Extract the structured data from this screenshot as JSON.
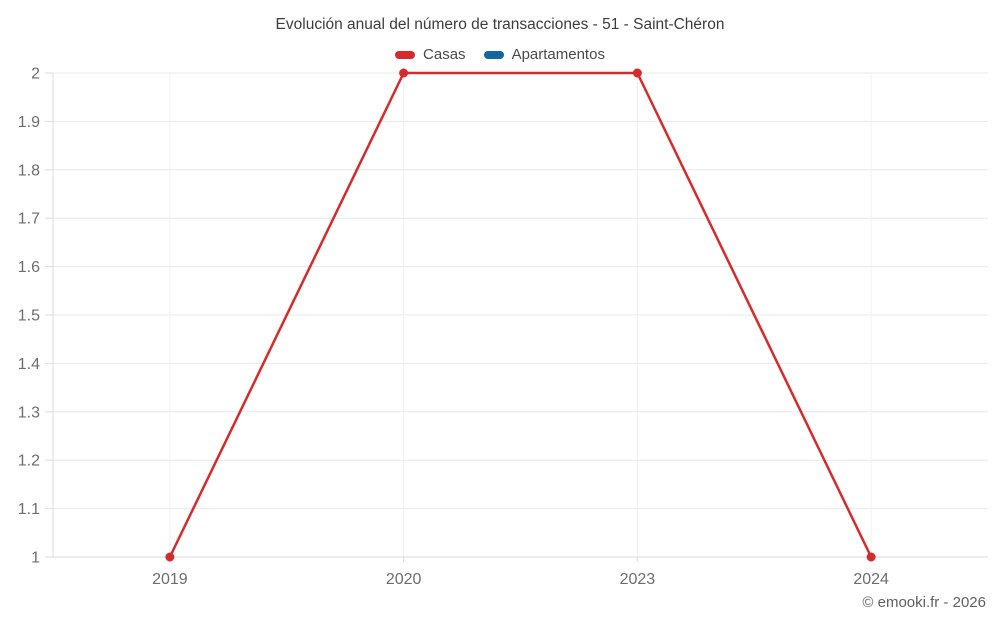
{
  "title": "Evolución anual del número de transacciones - 51 - Saint-Chéron",
  "watermark": "© emooki.fr - 2026",
  "legend": {
    "items": [
      {
        "label": "Casas",
        "color": "#d62b2c"
      },
      {
        "label": "Apartamentos",
        "color": "#12689e"
      }
    ]
  },
  "chart_data": {
    "type": "line",
    "title": "Evolución anual del número de transacciones - 51 - Saint-Chéron",
    "categories": [
      "2019",
      "2020",
      "2023",
      "2024"
    ],
    "series": [
      {
        "name": "Casas",
        "color": "#d62b2c",
        "values": [
          1,
          2,
          2,
          1
        ]
      },
      {
        "name": "Apartamentos",
        "color": "#12689e",
        "values": [
          null,
          null,
          null,
          null
        ]
      }
    ],
    "xlabel": "",
    "ylabel": "",
    "ylim": [
      1,
      2
    ],
    "yticks": [
      1,
      1.1,
      1.2,
      1.3,
      1.4,
      1.5,
      1.6,
      1.7,
      1.8,
      1.9,
      2
    ],
    "ytick_labels": [
      "1",
      "1.1",
      "1.2",
      "1.3",
      "1.4",
      "1.5",
      "1.6",
      "1.7",
      "1.8",
      "1.9",
      "2"
    ],
    "grid": true,
    "legend_position": "top"
  },
  "colors": {
    "grid_horizontal": "#e8e8e8",
    "grid_vertical": "#f0f0f0",
    "axis": "#d9d9d9",
    "tick": "#dcdcdc",
    "title_text": "#3d3d3d",
    "axis_text": "#6d6d6d",
    "legend_text": "#4a4a4a",
    "watermark_text": "#606060"
  }
}
